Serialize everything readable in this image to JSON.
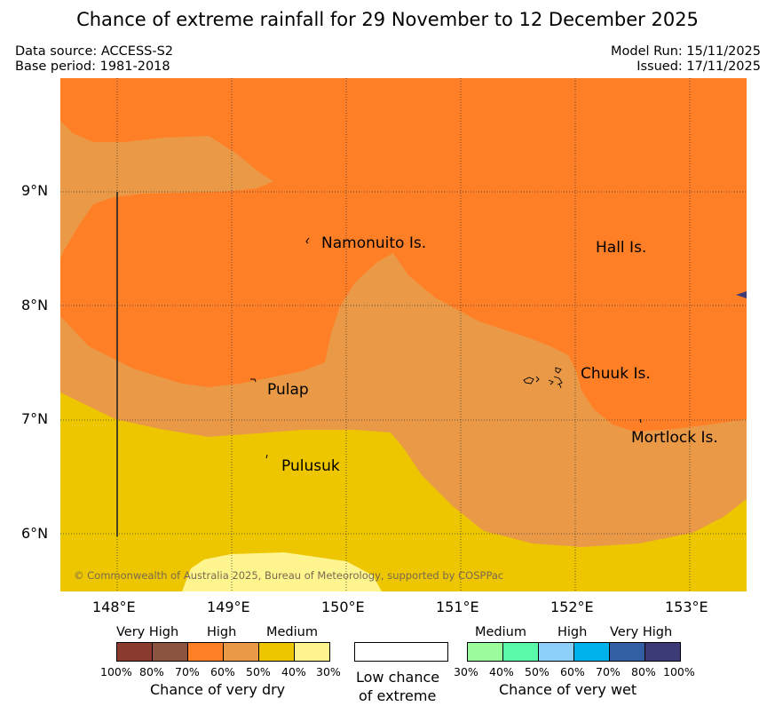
{
  "title": "Chance of extreme rainfall for 29 November to 12 December 2025",
  "meta": {
    "data_source": "Data source: ACCESS-S2",
    "base_period": "Base period: 1981-2018",
    "model_run": "Model Run: 15/11/2025",
    "issued": "Issued: 17/11/2025"
  },
  "map": {
    "lat_labels": [
      "9°N",
      "8°N",
      "7°N",
      "6°N"
    ],
    "lon_labels": [
      "148°E",
      "149°E",
      "150°E",
      "151°E",
      "152°E",
      "153°E"
    ],
    "places": {
      "namonuito": "Namonuito Is.",
      "hall": "Hall Is.",
      "chuuk": "Chuuk Is.",
      "pulap": "Pulap",
      "mortlock": "Mortlock Is.",
      "pulusuk": "Pulusuk"
    },
    "copyright": "© Commonwealth of Australia 2025, Bureau of Meteorology, supported by COSPPac"
  },
  "legend": {
    "dry": {
      "headings": [
        "Very High",
        "High",
        "Medium"
      ],
      "ticks": [
        "100%",
        "80%",
        "70%",
        "60%",
        "50%",
        "40%",
        "30%"
      ],
      "caption": "Chance of very dry",
      "colors": [
        "#8b3a2e",
        "#8b5440",
        "#ff7f27",
        "#ea9a47",
        "#edc600",
        "#fff58f"
      ]
    },
    "low": {
      "caption_line1": "Low chance",
      "caption_line2": "of extreme"
    },
    "wet": {
      "headings": [
        "Medium",
        "High",
        "Very High"
      ],
      "ticks": [
        "30%",
        "40%",
        "50%",
        "60%",
        "70%",
        "80%",
        "100%"
      ],
      "caption": "Chance of very wet",
      "colors": [
        "#9bfc9b",
        "#5af9a9",
        "#8ccff9",
        "#00b2ec",
        "#325fa3",
        "#3c3b78"
      ]
    }
  }
}
